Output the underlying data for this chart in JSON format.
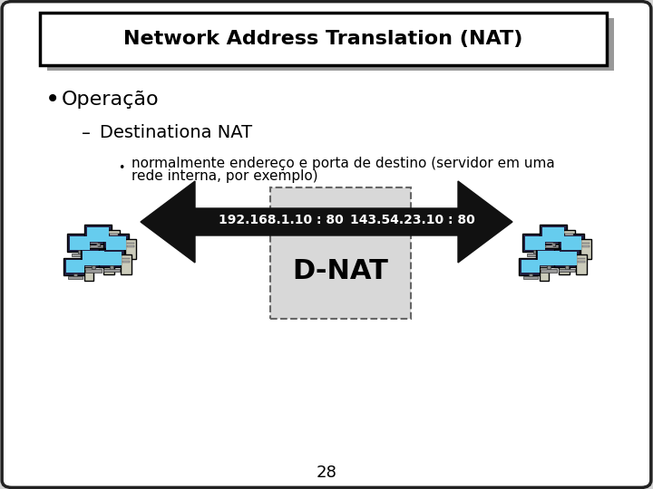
{
  "title": "Network Address Translation (NAT)",
  "bullet1": "Operação",
  "sub1": "Destinationa NAT",
  "sub2": "normalmente endereço e porta de destino (servidor em uma\nrede interna, por exemplo)",
  "arrow_label_left": "192.168.1.10 : 80",
  "arrow_label_right": "143.54.23.10 : 80",
  "dnat_label": "D-NAT",
  "page_number": "28",
  "bg_color": "#d4d4d4",
  "slide_bg": "#ffffff",
  "title_bg": "#ffffff",
  "shadow_color": "#999999",
  "dnat_box_color": "#d8d8d8",
  "arrow_color": "#111111",
  "text_color": "#000000",
  "arrow_text_color": "#ffffff"
}
